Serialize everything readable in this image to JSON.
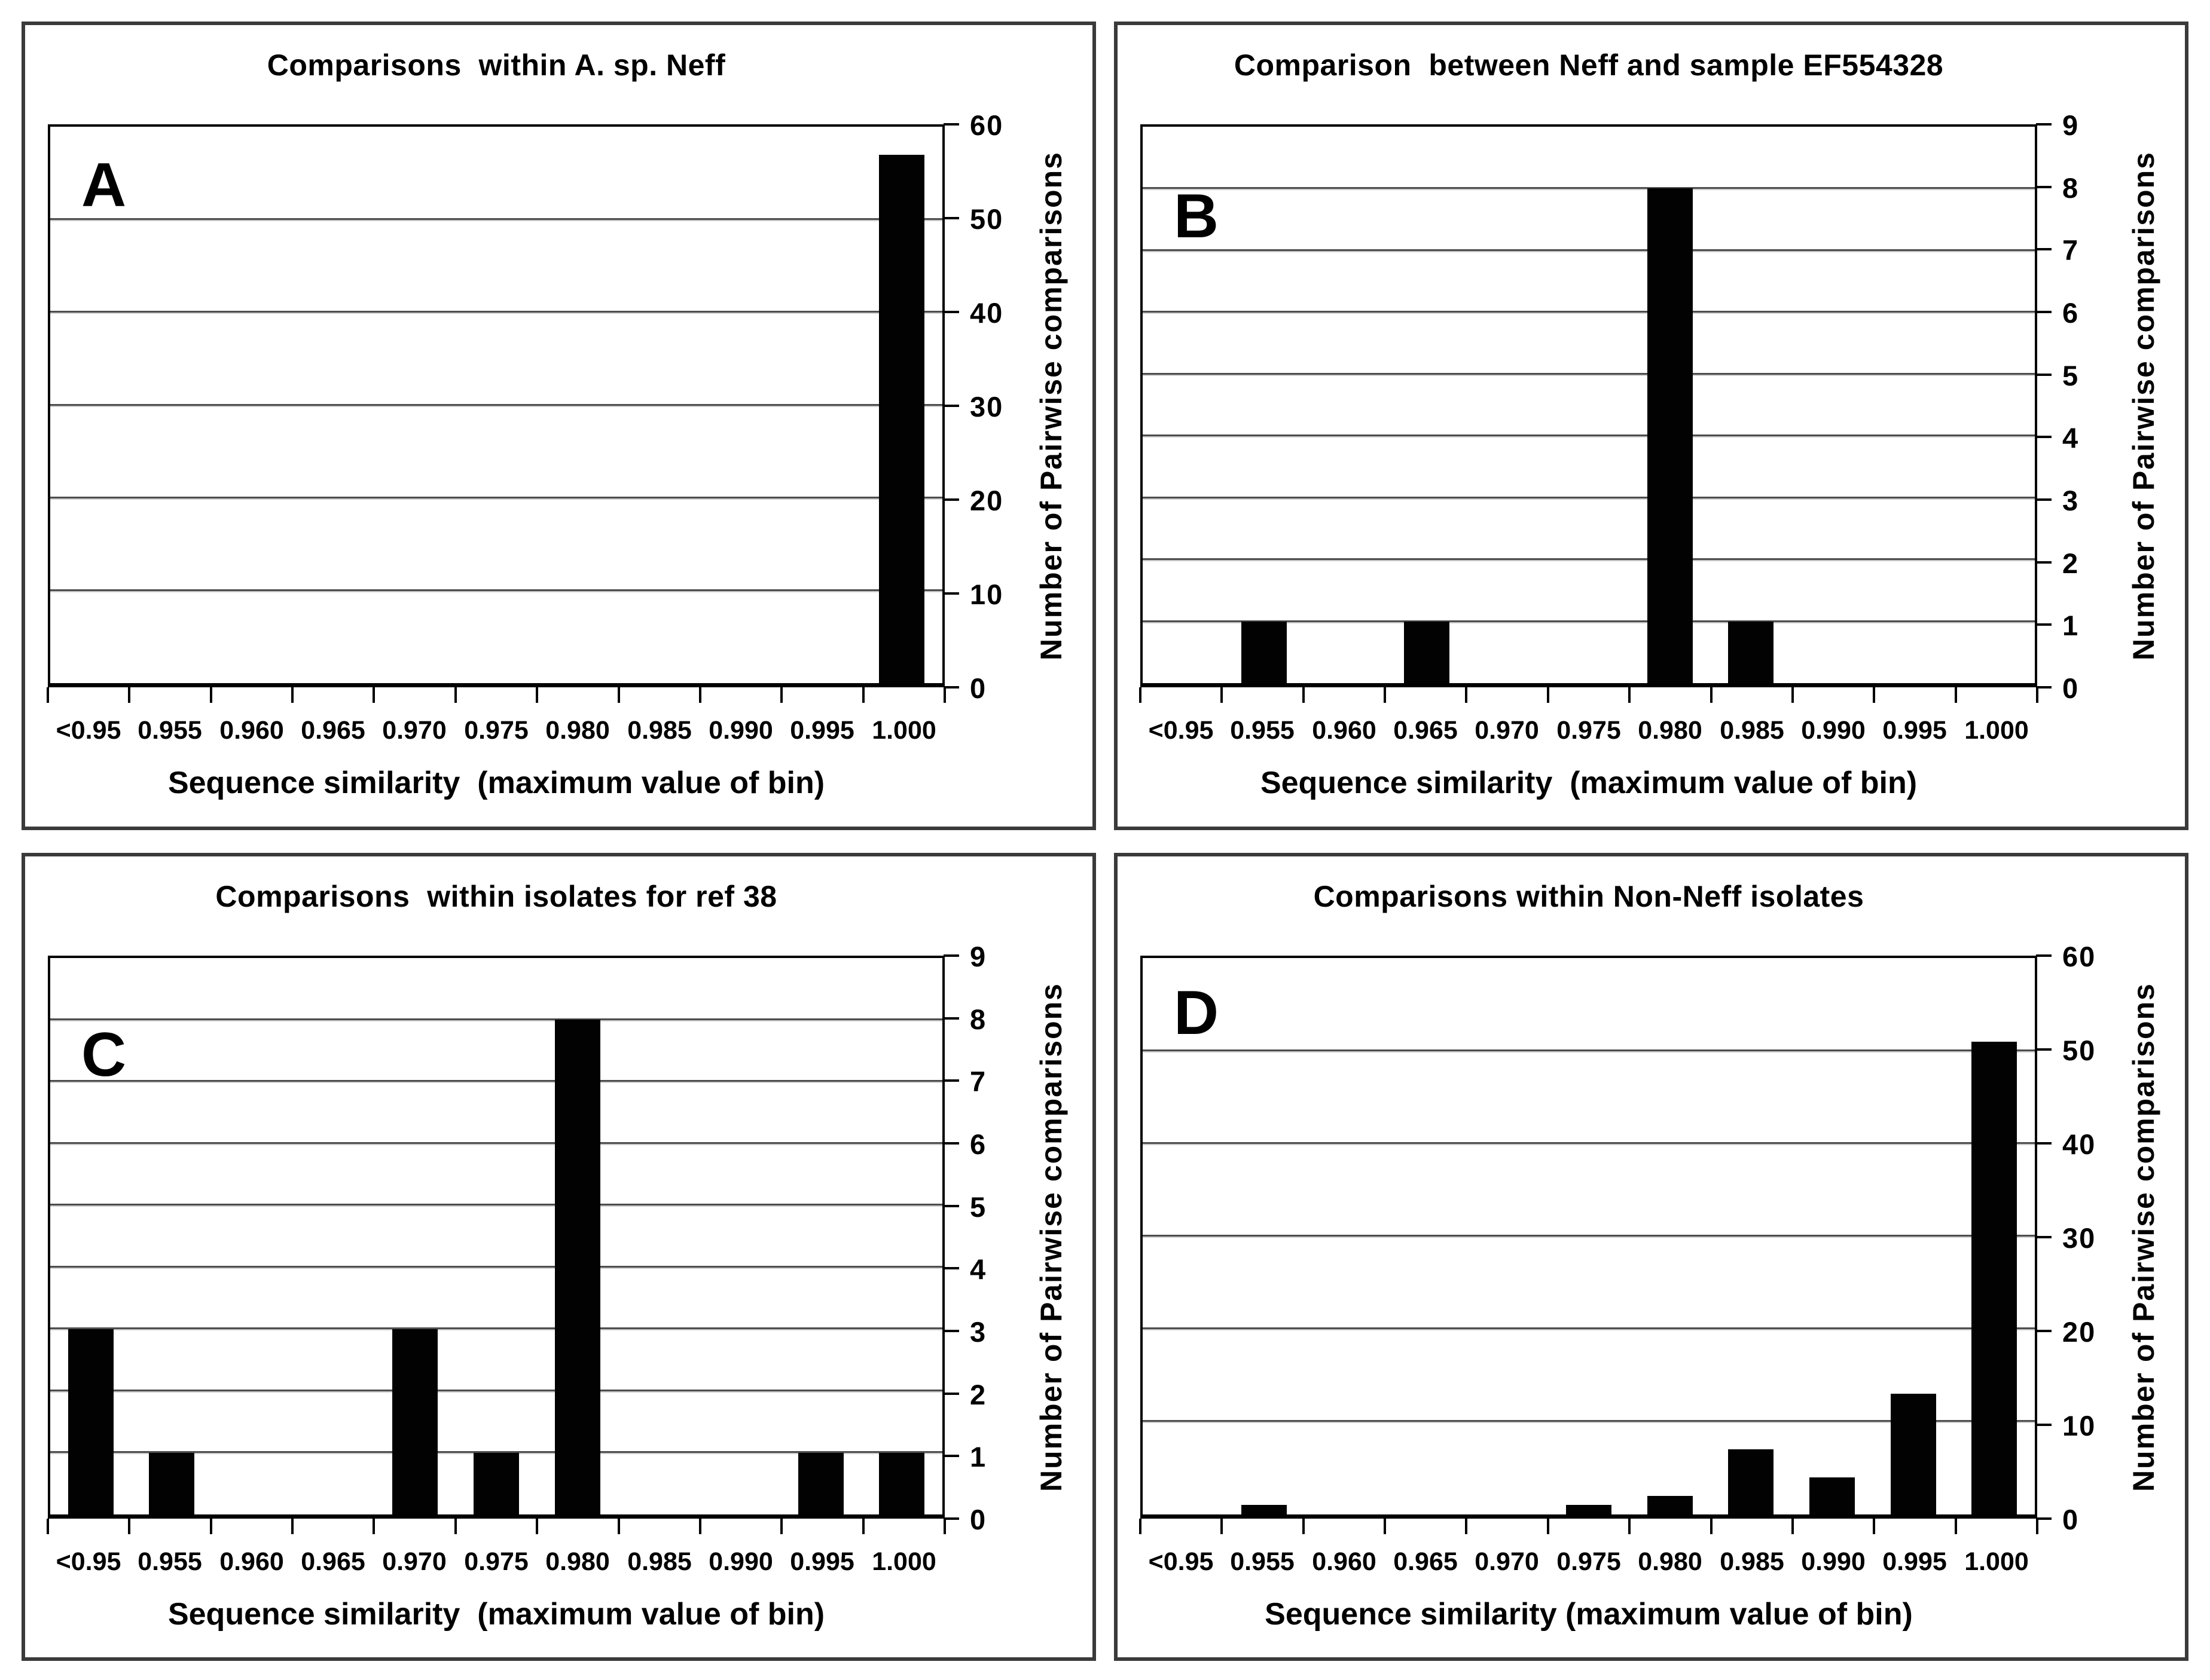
{
  "figure": {
    "background": "#ffffff",
    "panel_letters": [
      "A",
      "B",
      "C",
      "D"
    ]
  },
  "colors": {
    "bar": "#020202",
    "gridline": "#4d4d4d",
    "plot_border": "#000000",
    "panel_border": "#3a3a3a",
    "text": "#000000",
    "background": "#ffffff"
  },
  "chart_data": [
    {
      "type": "bar",
      "panel": "A",
      "title": "Comparisons  within A. sp. Neff",
      "categories": [
        "<0.95",
        "0.955",
        "0.960",
        "0.965",
        "0.970",
        "0.975",
        "0.980",
        "0.985",
        "0.990",
        "0.995",
        "1.000"
      ],
      "values": [
        0,
        0,
        0,
        0,
        0,
        0,
        0,
        0,
        0,
        0,
        57
      ],
      "xlabel": "Sequence similarity  (maximum value of bin)",
      "ylabel": "Number of Pairwise comparisons",
      "ylim": [
        0,
        60
      ],
      "ytick_step": 10,
      "yticks": [
        0,
        10,
        20,
        30,
        40,
        50,
        60
      ],
      "grid": true,
      "legend": "none",
      "bar_color": "#020202",
      "y_axis_side": "right"
    },
    {
      "type": "bar",
      "panel": "B",
      "title": "Comparison  between Neff and sample EF554328",
      "categories": [
        "<0.95",
        "0.955",
        "0.960",
        "0.965",
        "0.970",
        "0.975",
        "0.980",
        "0.985",
        "0.990",
        "0.995",
        "1.000"
      ],
      "values": [
        0,
        1,
        0,
        1,
        0,
        0,
        8,
        1,
        0,
        0,
        0
      ],
      "xlabel": "Sequence similarity  (maximum value of bin)",
      "ylabel": "Number of Pairwise comparisons",
      "ylim": [
        0,
        9
      ],
      "ytick_step": 1,
      "yticks": [
        0,
        1,
        2,
        3,
        4,
        5,
        6,
        7,
        8,
        9
      ],
      "grid": true,
      "legend": "none",
      "bar_color": "#020202",
      "y_axis_side": "right"
    },
    {
      "type": "bar",
      "panel": "C",
      "title": "Comparisons  within isolates for ref 38",
      "categories": [
        "<0.95",
        "0.955",
        "0.960",
        "0.965",
        "0.970",
        "0.975",
        "0.980",
        "0.985",
        "0.990",
        "0.995",
        "1.000"
      ],
      "values": [
        3,
        1,
        0,
        0,
        3,
        1,
        8,
        0,
        0,
        1,
        1
      ],
      "xlabel": "Sequence similarity  (maximum value of bin)",
      "ylabel": "Number of Pairwise comparisons",
      "ylim": [
        0,
        9
      ],
      "ytick_step": 1,
      "yticks": [
        0,
        1,
        2,
        3,
        4,
        5,
        6,
        7,
        8,
        9
      ],
      "grid": true,
      "legend": "none",
      "bar_color": "#020202",
      "y_axis_side": "right"
    },
    {
      "type": "bar",
      "panel": "D",
      "title": "Comparisons within Non-Neff isolates",
      "categories": [
        "<0.95",
        "0.955",
        "0.960",
        "0.965",
        "0.970",
        "0.975",
        "0.980",
        "0.985",
        "0.990",
        "0.995",
        "1.000"
      ],
      "values": [
        0,
        1,
        0,
        0,
        0,
        1,
        2,
        7,
        4,
        13,
        51
      ],
      "xlabel": "Sequence similarity (maximum value of bin)",
      "ylabel": "Number of Pairwise comparisons",
      "ylim": [
        0,
        60
      ],
      "ytick_step": 10,
      "yticks": [
        0,
        10,
        20,
        30,
        40,
        50,
        60
      ],
      "grid": true,
      "legend": "none",
      "bar_color": "#020202",
      "y_axis_side": "right"
    }
  ]
}
